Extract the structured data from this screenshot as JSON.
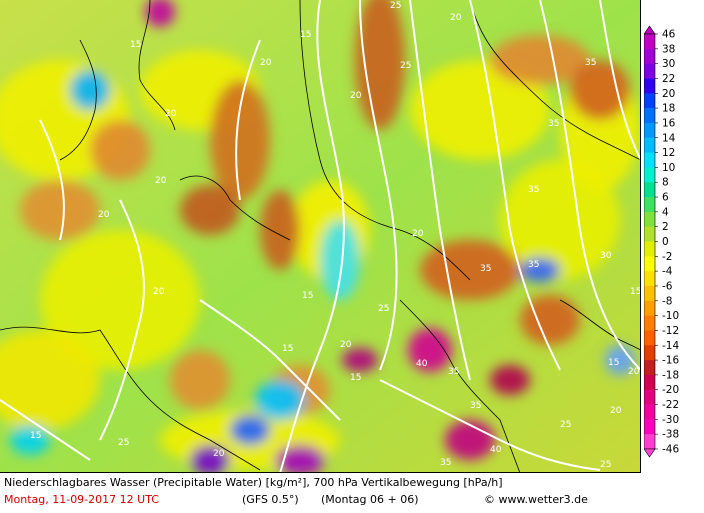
{
  "caption": {
    "title": "Niederschlagbares Wasser (Precipitable Water) [kg/m²], 700 hPa Vertikalbewegung [hPa/h]",
    "date": "Montag, 11-09-2017  12 UTC",
    "model": "(GFS 0.5°)",
    "run": "(Montag 06 + 06)",
    "copyright": "© www.wetter3.de"
  },
  "legend": {
    "levels": [
      "46",
      "38",
      "30",
      "22",
      "20",
      "18",
      "16",
      "14",
      "12",
      "10",
      "8",
      "6",
      "4",
      "2",
      "0",
      "-2",
      "-4",
      "-6",
      "-8",
      "-10",
      "-12",
      "-14",
      "-16",
      "-18",
      "-20",
      "-22",
      "-30",
      "-38",
      "-46"
    ],
    "colors": [
      "#c000c0",
      "#a000d0",
      "#8000e0",
      "#3000f0",
      "#0040ff",
      "#0070ff",
      "#0098ff",
      "#00bcff",
      "#00e0ff",
      "#00f0d0",
      "#00e090",
      "#40e060",
      "#80e040",
      "#b0e030",
      "#e0f000",
      "#ffff00",
      "#ffe000",
      "#ffc000",
      "#ffa000",
      "#ff8000",
      "#ff6000",
      "#e04000",
      "#c02020",
      "#d00050",
      "#e00080",
      "#f000a0",
      "#ff00c0",
      "#ff40d0"
    ]
  },
  "contour_labels": [
    "15",
    "20",
    "25",
    "30",
    "35",
    "40"
  ],
  "icons": {
    "copyright": "copyright-icon"
  }
}
